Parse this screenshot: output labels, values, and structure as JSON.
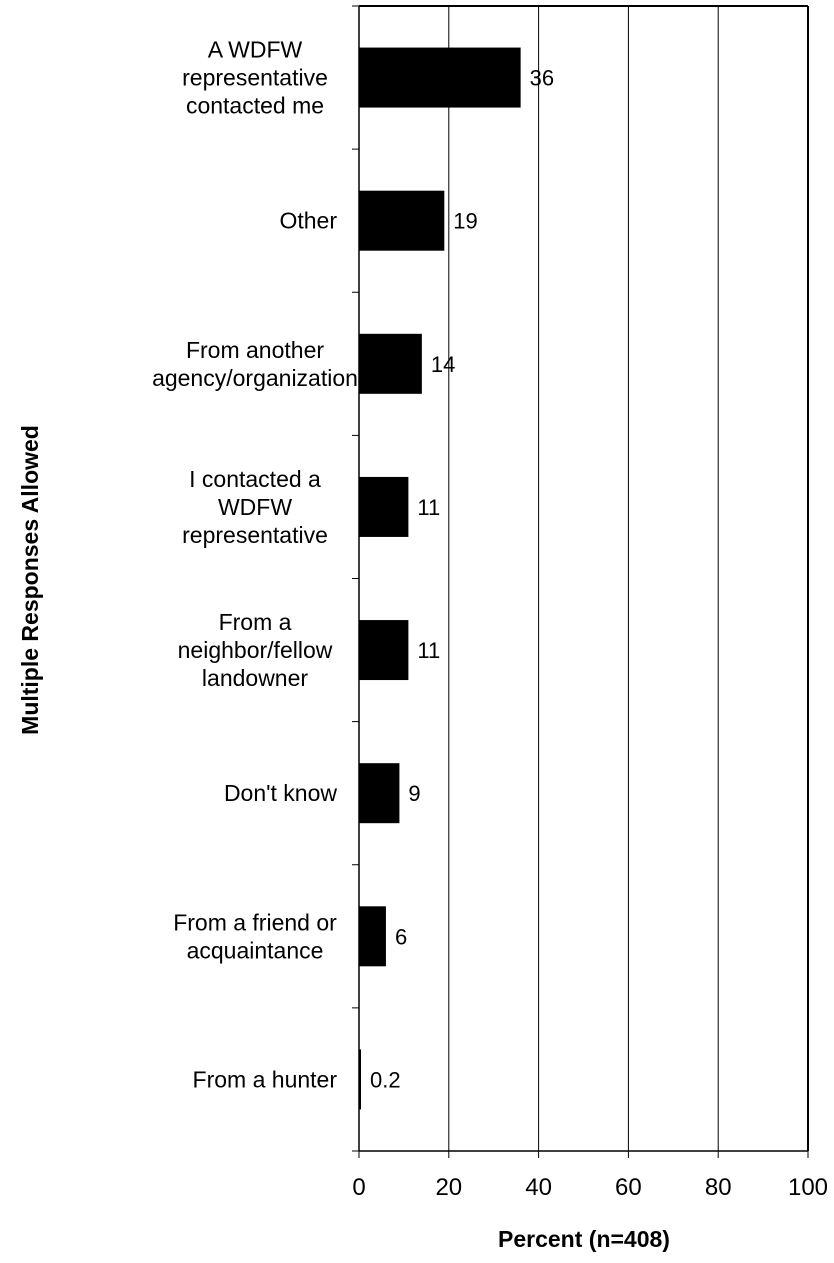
{
  "chart_data": {
    "type": "bar",
    "orientation": "horizontal",
    "categories": [
      [
        "A WDFW",
        "representative",
        "contacted me"
      ],
      [
        "Other"
      ],
      [
        "From another",
        "agency/organization"
      ],
      [
        "I contacted a",
        "WDFW",
        "representative"
      ],
      [
        "From a",
        "neighbor/fellow",
        "landowner"
      ],
      [
        "Don't know"
      ],
      [
        "From a friend or",
        "acquaintance"
      ],
      [
        "From a hunter"
      ]
    ],
    "values": [
      36,
      19,
      14,
      11,
      11,
      9,
      6,
      0.2
    ],
    "value_labels": [
      "36",
      "19",
      "14",
      "11",
      "11",
      "9",
      "6",
      "0.2"
    ],
    "xlabel": "Percent (n=408)",
    "ylabel": "Multiple Responses Allowed",
    "xlim": [
      0,
      100
    ],
    "xticks": [
      0,
      20,
      40,
      60,
      80,
      100
    ],
    "xtick_labels": [
      "0",
      "20",
      "40",
      "60",
      "80",
      "100"
    ],
    "grid": "vertical gridlines",
    "bar_color": "#000000"
  }
}
